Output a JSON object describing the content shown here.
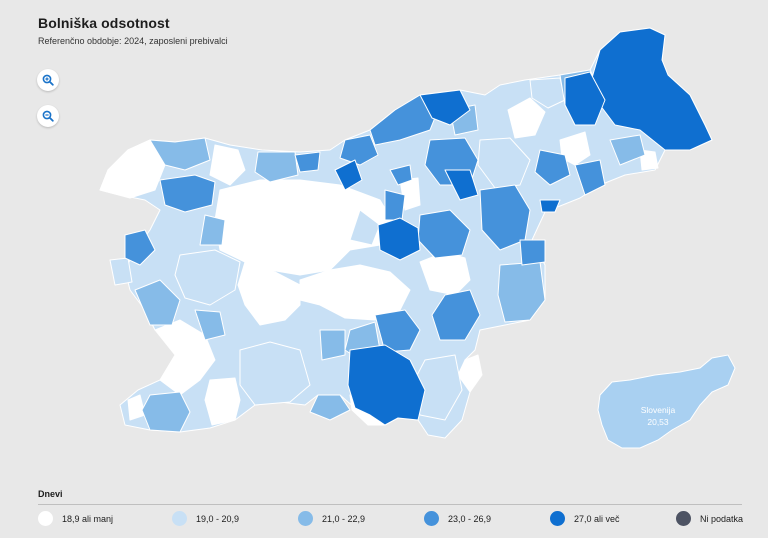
{
  "header": {
    "title": "Bolniška odsotnost",
    "subtitle": "Referenčno obdobje: 2024, zaposleni prebivalci"
  },
  "controls": {
    "zoom_in_icon": "zoom-in-icon",
    "zoom_out_icon": "zoom-out-icon"
  },
  "inset": {
    "name": "Slovenija",
    "value": "20,53",
    "color": "#a9d0f1"
  },
  "legend": {
    "title": "Dnevi",
    "classes": [
      {
        "label": "18,9 ali manj",
        "color": "#ffffff"
      },
      {
        "label": "19,0 - 20,9",
        "color": "#c8e0f5"
      },
      {
        "label": "21,0 - 22,9",
        "color": "#86bbe8"
      },
      {
        "label": "23,0 - 26,9",
        "color": "#4592db"
      },
      {
        "label": "27,0 ali več",
        "color": "#0f6fd0"
      },
      {
        "label": "Ni podatka",
        "color": "#4d5363"
      }
    ]
  },
  "colors": {
    "background": "#e8e8e8",
    "border": "#ffffff",
    "accent": "#1a73c9"
  }
}
